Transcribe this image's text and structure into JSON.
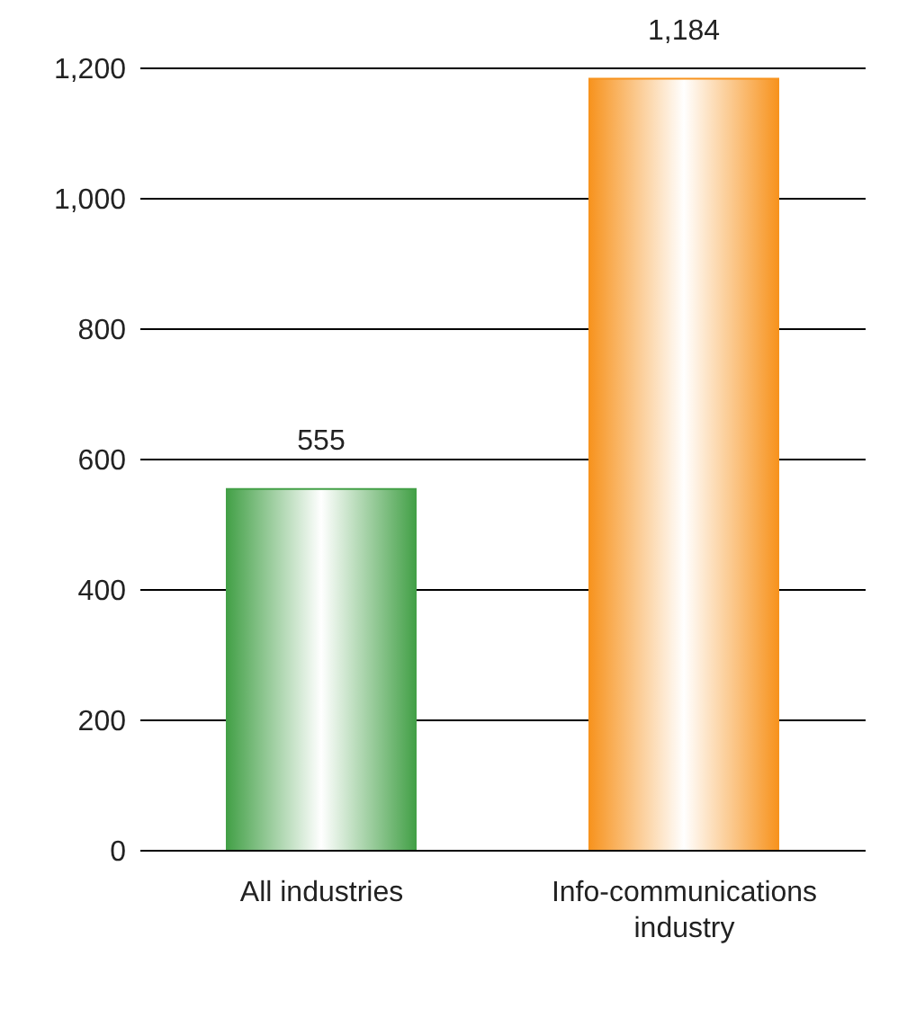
{
  "chart_data": {
    "type": "bar",
    "categories": [
      "All industries",
      "Info-communications industry"
    ],
    "values": [
      555,
      1184
    ],
    "colors": [
      "#43a047",
      "#f7931e"
    ],
    "value_labels": [
      "555",
      "1,184"
    ],
    "ylim": [
      0,
      1200
    ],
    "yticks": [
      0,
      200,
      400,
      600,
      800,
      {
        "value": 1000,
        "label": "1,000"
      },
      {
        "value": 1200,
        "label": "1,200"
      }
    ],
    "grid": "y"
  }
}
